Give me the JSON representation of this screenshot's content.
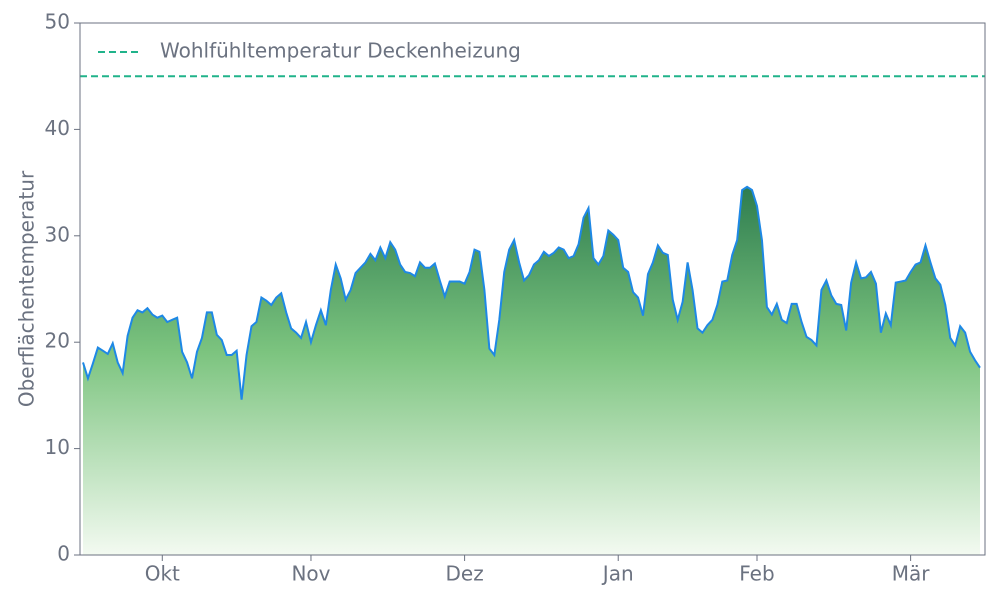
{
  "chart_data": {
    "type": "area",
    "y_label": "Oberflächentemperatur",
    "categories": [
      null,
      null,
      null,
      null,
      null,
      null,
      null,
      null,
      null,
      null,
      null,
      null,
      null,
      null,
      null,
      null,
      "Okt",
      null,
      null,
      null,
      null,
      null,
      null,
      null,
      null,
      null,
      null,
      null,
      null,
      null,
      null,
      null,
      null,
      null,
      null,
      null,
      null,
      null,
      null,
      null,
      null,
      null,
      null,
      null,
      null,
      null,
      "Nov",
      null,
      null,
      null,
      null,
      null,
      null,
      null,
      null,
      null,
      null,
      null,
      null,
      null,
      null,
      null,
      null,
      null,
      null,
      null,
      null,
      null,
      null,
      null,
      null,
      null,
      null,
      null,
      null,
      null,
      null,
      "Dez",
      null,
      null,
      null,
      null,
      null,
      null,
      null,
      null,
      null,
      null,
      null,
      null,
      null,
      null,
      null,
      null,
      null,
      null,
      null,
      null,
      null,
      null,
      null,
      null,
      null,
      null,
      null,
      null,
      null,
      null,
      "Jan",
      null,
      null,
      null,
      null,
      null,
      null,
      null,
      null,
      null,
      null,
      null,
      null,
      null,
      null,
      null,
      null,
      null,
      null,
      null,
      null,
      null,
      null,
      null,
      null,
      null,
      null,
      null,
      "Feb",
      null,
      null,
      null,
      null,
      null,
      null,
      null,
      null,
      null,
      null,
      null,
      null,
      null,
      null,
      null,
      null,
      null,
      null,
      null,
      null,
      null,
      null,
      null,
      null,
      null,
      null,
      null,
      null,
      null,
      null,
      "Mär",
      null,
      null,
      null,
      null,
      null,
      null,
      null,
      null,
      null,
      null,
      null,
      null,
      null,
      null
    ],
    "values": [
      18.1,
      16.6,
      18.0,
      19.5,
      19.2,
      18.9,
      19.9,
      18.1,
      17.1,
      20.6,
      22.3,
      23.0,
      22.8,
      23.2,
      22.6,
      22.3,
      22.5,
      21.9,
      22.1,
      22.3,
      19.1,
      18.1,
      16.6,
      19.1,
      20.4,
      22.8,
      22.8,
      20.7,
      20.2,
      18.8,
      18.8,
      19.2,
      14.6,
      18.8,
      21.5,
      21.9,
      24.2,
      23.9,
      23.5,
      24.2,
      24.6,
      22.8,
      21.3,
      20.9,
      20.4,
      21.9,
      20.0,
      21.6,
      23.0,
      21.6,
      24.9,
      27.3,
      26.0,
      24.0,
      24.9,
      26.5,
      27.0,
      27.5,
      28.3,
      27.7,
      28.9,
      27.9,
      29.4,
      28.7,
      27.3,
      26.6,
      26.5,
      26.2,
      27.5,
      27.0,
      27.0,
      27.4,
      25.8,
      24.3,
      25.7,
      25.7,
      25.7,
      25.5,
      26.6,
      28.7,
      28.5,
      24.9,
      19.4,
      18.8,
      22.1,
      26.6,
      28.7,
      29.6,
      27.5,
      25.8,
      26.3,
      27.3,
      27.7,
      28.5,
      28.1,
      28.4,
      28.9,
      28.7,
      27.9,
      28.1,
      29.2,
      31.7,
      32.6,
      27.9,
      27.3,
      28.1,
      30.5,
      30.1,
      29.6,
      27.0,
      26.6,
      24.7,
      24.2,
      22.5,
      26.4,
      27.5,
      29.1,
      28.4,
      28.2,
      24.0,
      22.1,
      23.8,
      27.5,
      24.9,
      21.3,
      20.9,
      21.6,
      22.1,
      23.5,
      25.7,
      25.8,
      28.2,
      29.6,
      34.3,
      34.6,
      34.3,
      32.8,
      29.6,
      23.3,
      22.6,
      23.6,
      22.1,
      21.8,
      23.6,
      23.6,
      21.9,
      20.5,
      20.2,
      19.7,
      24.9,
      25.8,
      24.4,
      23.6,
      23.5,
      21.1,
      25.6,
      27.5,
      26.0,
      26.1,
      26.6,
      25.5,
      20.9,
      22.7,
      21.6,
      25.6,
      25.7,
      25.8,
      26.6,
      27.3,
      27.5,
      29.1,
      27.5,
      26.0,
      25.4,
      23.5,
      20.4,
      19.7,
      21.5,
      20.9,
      19.1,
      18.3,
      17.6
    ],
    "color": "#1e88e5",
    "fill_top": "#2e7d4f",
    "fill_bottom": "#f3faf1",
    "reference_lines": [
      {
        "name": "Wohlfühltemperatur Deckenheizung",
        "value": 45,
        "color": "#20b38a"
      }
    ],
    "legend": "upper left",
    "ylim": [
      0,
      50
    ],
    "yticks": [
      0,
      10,
      20,
      30,
      40,
      50
    ]
  }
}
